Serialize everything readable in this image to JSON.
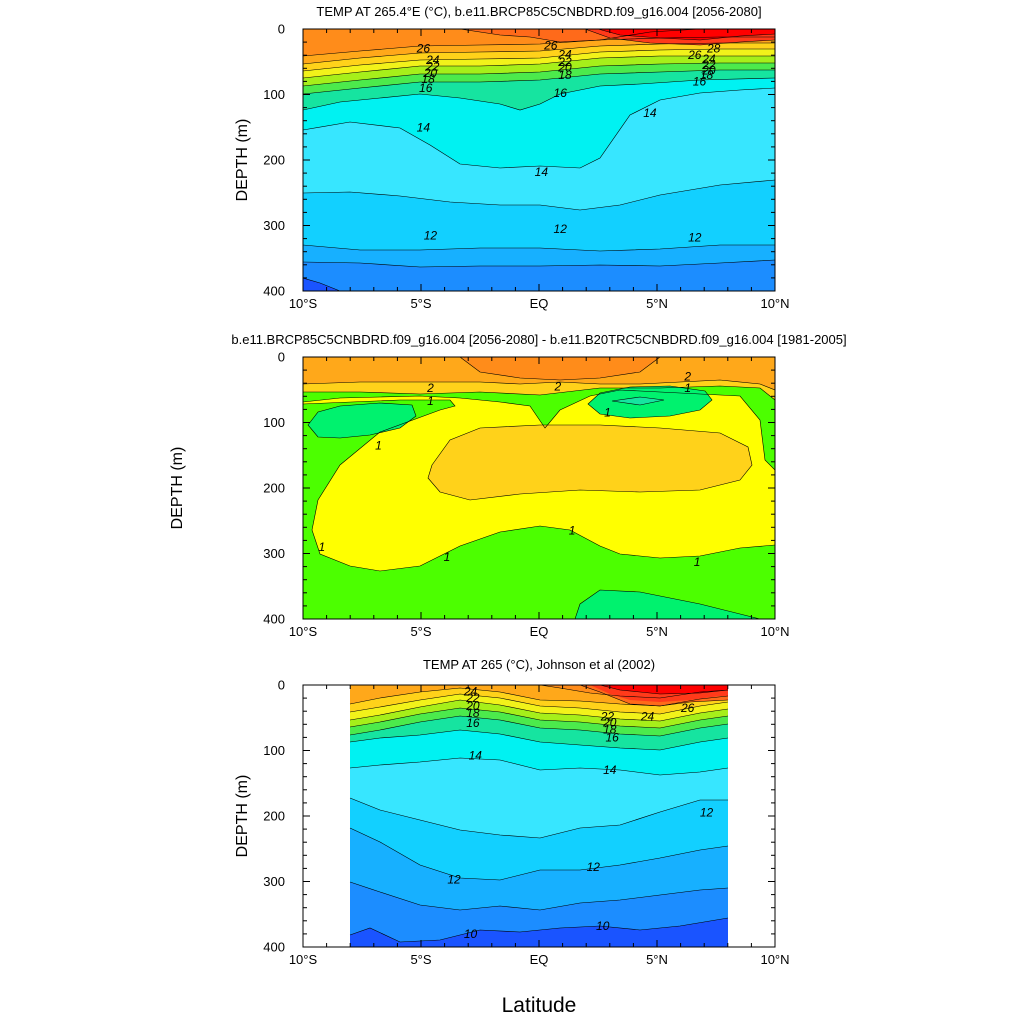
{
  "chart_data": [
    {
      "type": "contour",
      "title": "TEMP AT 265.4°E (°C), b.e11.BRCP85C5CNBDRD.f09_g16.004 [2056-2080]",
      "xlabel": "",
      "ylabel": "DEPTH (m)",
      "xlim": [
        -10,
        10
      ],
      "ylim": [
        400,
        0
      ],
      "x_ticks": [
        "10°S",
        "5°S",
        "EQ",
        "5°N",
        "10°N"
      ],
      "y_ticks": [
        "0",
        "100",
        "200",
        "300",
        "400"
      ],
      "contour_labels": [
        {
          "text": "26",
          "x": -4.9,
          "y": 30
        },
        {
          "text": "24",
          "x": -4.5,
          "y": 47
        },
        {
          "text": "22",
          "x": -4.5,
          "y": 57
        },
        {
          "text": "20",
          "x": -4.6,
          "y": 67
        },
        {
          "text": "18",
          "x": -4.7,
          "y": 76
        },
        {
          "text": "16",
          "x": -4.8,
          "y": 90
        },
        {
          "text": "26",
          "x": 0.5,
          "y": 25
        },
        {
          "text": "24",
          "x": 1.1,
          "y": 39
        },
        {
          "text": "22",
          "x": 1.1,
          "y": 50
        },
        {
          "text": "20",
          "x": 1.1,
          "y": 59
        },
        {
          "text": "18",
          "x": 1.1,
          "y": 70
        },
        {
          "text": "16",
          "x": 0.9,
          "y": 98
        },
        {
          "text": "28",
          "x": 7.4,
          "y": 30
        },
        {
          "text": "26",
          "x": 6.6,
          "y": 40
        },
        {
          "text": "24",
          "x": 7.2,
          "y": 46
        },
        {
          "text": "22",
          "x": 7.2,
          "y": 55
        },
        {
          "text": "20",
          "x": 7.2,
          "y": 63
        },
        {
          "text": "18",
          "x": 7.1,
          "y": 70
        },
        {
          "text": "16",
          "x": 6.8,
          "y": 80
        },
        {
          "text": "14",
          "x": -4.9,
          "y": 150
        },
        {
          "text": "14",
          "x": 0.1,
          "y": 218
        },
        {
          "text": "14",
          "x": 4.7,
          "y": 128
        },
        {
          "text": "12",
          "x": -4.6,
          "y": 315
        },
        {
          "text": "12",
          "x": 0.9,
          "y": 305
        },
        {
          "text": "12",
          "x": 6.6,
          "y": 318
        }
      ],
      "colors": [
        "#1a54ff",
        "#1c8dff",
        "#17b0ff",
        "#12d0ff",
        "#37e6ff",
        "#00f2f2",
        "#16e4a0",
        "#4cea4c",
        "#a6ef1a",
        "#f2f21a",
        "#ffd21a",
        "#ffa81a",
        "#ff8c1a",
        "#ff6a1a",
        "#ff3a1a",
        "#ff0000"
      ]
    },
    {
      "type": "contour",
      "title": "b.e11.BRCP85C5CNBDRD.f09_g16.004 [2056-2080] - b.e11.B20TRC5CNBDRD.f09_g16.004 [1981-2005]",
      "xlabel": "",
      "ylabel": "DEPTH (m)",
      "xlim": [
        -10,
        10
      ],
      "ylim": [
        400,
        0
      ],
      "x_ticks": [
        "10°S",
        "5°S",
        "EQ",
        "5°N",
        "10°N"
      ],
      "y_ticks": [
        "0",
        "100",
        "200",
        "300",
        "400"
      ],
      "contour_labels": [
        {
          "text": "2",
          "x": -4.6,
          "y": 47
        },
        {
          "text": "1",
          "x": -4.6,
          "y": 67
        },
        {
          "text": "2",
          "x": 0.8,
          "y": 45
        },
        {
          "text": "2",
          "x": 6.3,
          "y": 30
        },
        {
          "text": "1",
          "x": 6.3,
          "y": 47
        },
        {
          "text": "1",
          "x": 2.9,
          "y": 85
        },
        {
          "text": "1",
          "x": -6.8,
          "y": 135
        },
        {
          "text": "1",
          "x": -9.2,
          "y": 290
        },
        {
          "text": "1",
          "x": -3.9,
          "y": 305
        },
        {
          "text": "1",
          "x": 1.4,
          "y": 265
        },
        {
          "text": "1",
          "x": 6.7,
          "y": 313
        }
      ],
      "colors": [
        "#4cff00",
        "#00f26e",
        "#ffff00",
        "#ffd21a",
        "#ffa81a",
        "#ff8c1a"
      ]
    },
    {
      "type": "contour",
      "title": "TEMP AT 265 (°C), Johnson et al (2002)",
      "xlabel": "Latitude",
      "ylabel": "DEPTH (m)",
      "xlim": [
        -10,
        10
      ],
      "ylim": [
        400,
        0
      ],
      "x_ticks": [
        "10°S",
        "5°S",
        "EQ",
        "5°N",
        "10°N"
      ],
      "y_ticks": [
        "0",
        "100",
        "200",
        "300",
        "400"
      ],
      "data_extent_x": [
        -8,
        8
      ],
      "contour_labels": [
        {
          "text": "24",
          "x": -2.9,
          "y": 10
        },
        {
          "text": "22",
          "x": -2.8,
          "y": 20
        },
        {
          "text": "20",
          "x": -2.8,
          "y": 32
        },
        {
          "text": "18",
          "x": -2.8,
          "y": 43
        },
        {
          "text": "16",
          "x": -2.8,
          "y": 58
        },
        {
          "text": "22",
          "x": 2.9,
          "y": 48
        },
        {
          "text": "20",
          "x": 3.0,
          "y": 57
        },
        {
          "text": "18",
          "x": 3.0,
          "y": 68
        },
        {
          "text": "16",
          "x": 3.1,
          "y": 80
        },
        {
          "text": "24",
          "x": 4.6,
          "y": 48
        },
        {
          "text": "26",
          "x": 6.3,
          "y": 35
        },
        {
          "text": "14",
          "x": -2.7,
          "y": 108
        },
        {
          "text": "14",
          "x": 3.0,
          "y": 130
        },
        {
          "text": "12",
          "x": 7.1,
          "y": 195
        },
        {
          "text": "12",
          "x": -3.6,
          "y": 297
        },
        {
          "text": "12",
          "x": 2.3,
          "y": 278
        },
        {
          "text": "10",
          "x": -2.9,
          "y": 380
        },
        {
          "text": "10",
          "x": 2.7,
          "y": 368
        }
      ],
      "colors": [
        "#1a54ff",
        "#1c8dff",
        "#17b0ff",
        "#12d0ff",
        "#37e6ff",
        "#00f2f2",
        "#16e4a0",
        "#4cea4c",
        "#a6ef1a",
        "#f2f21a",
        "#ffd21a",
        "#ffa81a",
        "#ff8c1a",
        "#ff6a1a",
        "#ff3a1a",
        "#ff0000"
      ]
    }
  ]
}
